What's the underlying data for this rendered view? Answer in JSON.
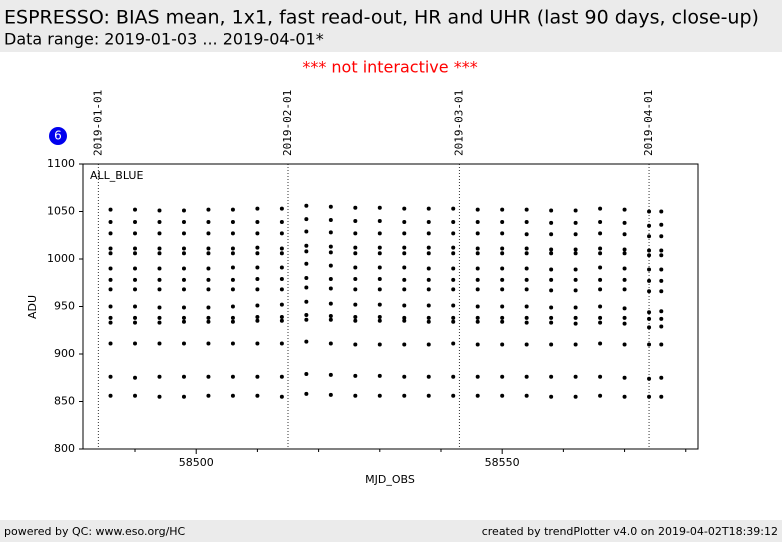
{
  "header": {
    "title": "ESPRESSO: BIAS mean, 1x1, fast read-out, HR and UHR (last 90 days, close-up)",
    "subtitle": "Data range: 2019-01-03 ... 2019-04-01*",
    "notice": "*** not interactive ***"
  },
  "badge": "6",
  "footer": {
    "left": "powered by QC: www.eso.org/HC",
    "right": "created by trendPlotter v4.0 on 2019-04-02T18:39:12"
  },
  "chart_data": {
    "type": "scatter",
    "annotation": "ALL_BLUE",
    "xlabel": "MJD_OBS",
    "ylabel": "ADU",
    "xlim": [
      58481.5,
      58582
    ],
    "ylim": [
      800,
      1100
    ],
    "xticks": [
      58500,
      58550
    ],
    "xminor_ticks": [
      58490,
      58510,
      58520,
      58530,
      58540,
      58560,
      58570,
      58580
    ],
    "yticks": [
      800,
      850,
      900,
      950,
      1000,
      1050,
      1100
    ],
    "date_markers": [
      {
        "value": 58484,
        "label": "2019-01-01"
      },
      {
        "value": 58515,
        "label": "2019-02-01"
      },
      {
        "value": 58543,
        "label": "2019-03-01"
      },
      {
        "value": 58574,
        "label": "2019-04-01"
      }
    ],
    "x": [
      58486,
      58490,
      58494,
      58498,
      58502,
      58506,
      58510,
      58514,
      58518,
      58522,
      58526,
      58530,
      58534,
      58538,
      58542,
      58546,
      58550,
      58554,
      58558,
      58562,
      58566,
      58570,
      58574,
      58576
    ],
    "series": [
      {
        "color": "#000000",
        "values": [
          856,
          856,
          855,
          855,
          856,
          856,
          856,
          855,
          858,
          857,
          856,
          856,
          856,
          856,
          856,
          856,
          856,
          856,
          855,
          855,
          856,
          855,
          855,
          855
        ]
      },
      {
        "color": "#000000",
        "values": [
          876,
          875,
          876,
          876,
          876,
          876,
          876,
          876,
          879,
          878,
          877,
          877,
          876,
          876,
          876,
          876,
          876,
          876,
          876,
          876,
          876,
          875,
          874,
          875
        ]
      },
      {
        "color": "#000000",
        "values": [
          911,
          911,
          911,
          911,
          911,
          911,
          911,
          911,
          913,
          911,
          910,
          910,
          910,
          910,
          911,
          910,
          910,
          910,
          910,
          910,
          911,
          910,
          910,
          910
        ]
      },
      {
        "color": "#000000",
        "values": [
          933,
          933,
          933,
          934,
          934,
          934,
          935,
          935,
          936,
          936,
          935,
          935,
          935,
          934,
          934,
          934,
          934,
          933,
          933,
          932,
          933,
          932,
          928,
          929
        ]
      },
      {
        "color": "#000000",
        "values": [
          938,
          938,
          938,
          938,
          938,
          938,
          939,
          939,
          941,
          940,
          939,
          939,
          938,
          938,
          938,
          938,
          938,
          938,
          938,
          938,
          938,
          938,
          937,
          937
        ]
      },
      {
        "color": "#000000",
        "values": [
          950,
          950,
          949,
          949,
          949,
          950,
          951,
          952,
          955,
          953,
          952,
          952,
          951,
          951,
          951,
          950,
          950,
          950,
          949,
          949,
          950,
          948,
          944,
          945
        ]
      },
      {
        "color": "#000000",
        "values": [
          968,
          968,
          968,
          968,
          968,
          968,
          968,
          968,
          970,
          969,
          968,
          968,
          968,
          968,
          968,
          968,
          968,
          968,
          967,
          967,
          968,
          968,
          966,
          966
        ]
      },
      {
        "color": "#000000",
        "values": [
          978,
          978,
          978,
          978,
          978,
          978,
          979,
          979,
          980,
          979,
          979,
          979,
          978,
          978,
          978,
          978,
          978,
          978,
          978,
          978,
          978,
          978,
          977,
          977
        ]
      },
      {
        "color": "#000000",
        "values": [
          990,
          990,
          990,
          990,
          990,
          991,
          991,
          991,
          995,
          993,
          991,
          991,
          991,
          990,
          990,
          990,
          990,
          990,
          989,
          989,
          991,
          990,
          989,
          989
        ]
      },
      {
        "color": "#000000",
        "values": [
          1006,
          1006,
          1006,
          1006,
          1006,
          1006,
          1006,
          1006,
          1008,
          1007,
          1006,
          1006,
          1006,
          1006,
          1006,
          1006,
          1006,
          1006,
          1006,
          1006,
          1006,
          1006,
          1004,
          1004
        ]
      },
      {
        "color": "#000000",
        "values": [
          1011,
          1011,
          1011,
          1011,
          1011,
          1011,
          1012,
          1011,
          1014,
          1013,
          1012,
          1012,
          1012,
          1012,
          1012,
          1011,
          1011,
          1011,
          1010,
          1010,
          1011,
          1010,
          1009,
          1009
        ]
      },
      {
        "color": "#000000",
        "values": [
          1027,
          1027,
          1027,
          1027,
          1027,
          1027,
          1027,
          1027,
          1029,
          1028,
          1027,
          1027,
          1027,
          1027,
          1027,
          1027,
          1027,
          1026,
          1026,
          1026,
          1027,
          1026,
          1024,
          1024
        ]
      },
      {
        "color": "#000000",
        "values": [
          1039,
          1039,
          1039,
          1039,
          1039,
          1039,
          1039,
          1039,
          1042,
          1041,
          1040,
          1040,
          1039,
          1039,
          1039,
          1039,
          1039,
          1039,
          1038,
          1038,
          1039,
          1038,
          1035,
          1036
        ]
      },
      {
        "color": "#000000",
        "values": [
          1052,
          1052,
          1051,
          1051,
          1052,
          1052,
          1053,
          1053,
          1056,
          1055,
          1054,
          1054,
          1053,
          1053,
          1053,
          1052,
          1052,
          1052,
          1051,
          1051,
          1053,
          1052,
          1050,
          1050
        ]
      }
    ]
  }
}
